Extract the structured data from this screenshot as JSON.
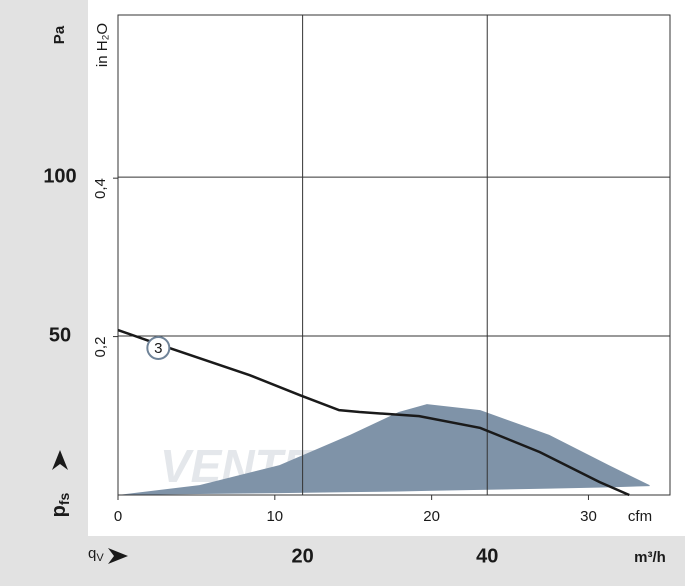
{
  "chart_data": {
    "type": "line",
    "y_label": "Pa",
    "y2_label": "in H₂O",
    "y_symbol": {
      "main": "p",
      "sub": "fs"
    },
    "x_symbol": {
      "main": "q",
      "sub": "V"
    },
    "x_label": "cfm",
    "x2_label": "m³/h",
    "watermark": "VENTEL",
    "xlim": [
      0,
      35.2
    ],
    "xticks": [
      0,
      10,
      20,
      30
    ],
    "x2lim": [
      0,
      59.8
    ],
    "x2ticks": [
      20,
      40
    ],
    "ylim": [
      0,
      151
    ],
    "yticks": [
      50,
      100
    ],
    "y2lim": [
      0,
      0.606
    ],
    "y2ticks": [
      {
        "value": 0.2,
        "label": "0,2"
      },
      {
        "value": 0.4,
        "label": "0,4"
      }
    ],
    "grid": true,
    "x": [
      0,
      2.7,
      8.4,
      11.6,
      14.1,
      15.4,
      19.2,
      23.1,
      26.9,
      30.7,
      32.6
    ],
    "series": [
      {
        "name": "3",
        "color": "#1a1a1a",
        "values": [
          51.9,
          47.2,
          37.7,
          31.4,
          26.7,
          26.1,
          24.8,
          21.1,
          13.5,
          4.1,
          0
        ]
      }
    ],
    "area": {
      "color": "#7f93a8",
      "x": [
        0,
        5.2,
        10.3,
        14.8,
        17.9,
        19.7,
        23.1,
        27.5,
        31.3,
        33.9
      ],
      "upper": [
        0,
        3.1,
        9.4,
        18.9,
        26.1,
        28.6,
        26.7,
        18.9,
        9.4,
        3.1
      ],
      "lower": [
        0,
        0.3,
        0.6,
        0.9,
        1.1,
        1.3,
        1.6,
        2.0,
        2.4,
        2.8
      ]
    }
  }
}
